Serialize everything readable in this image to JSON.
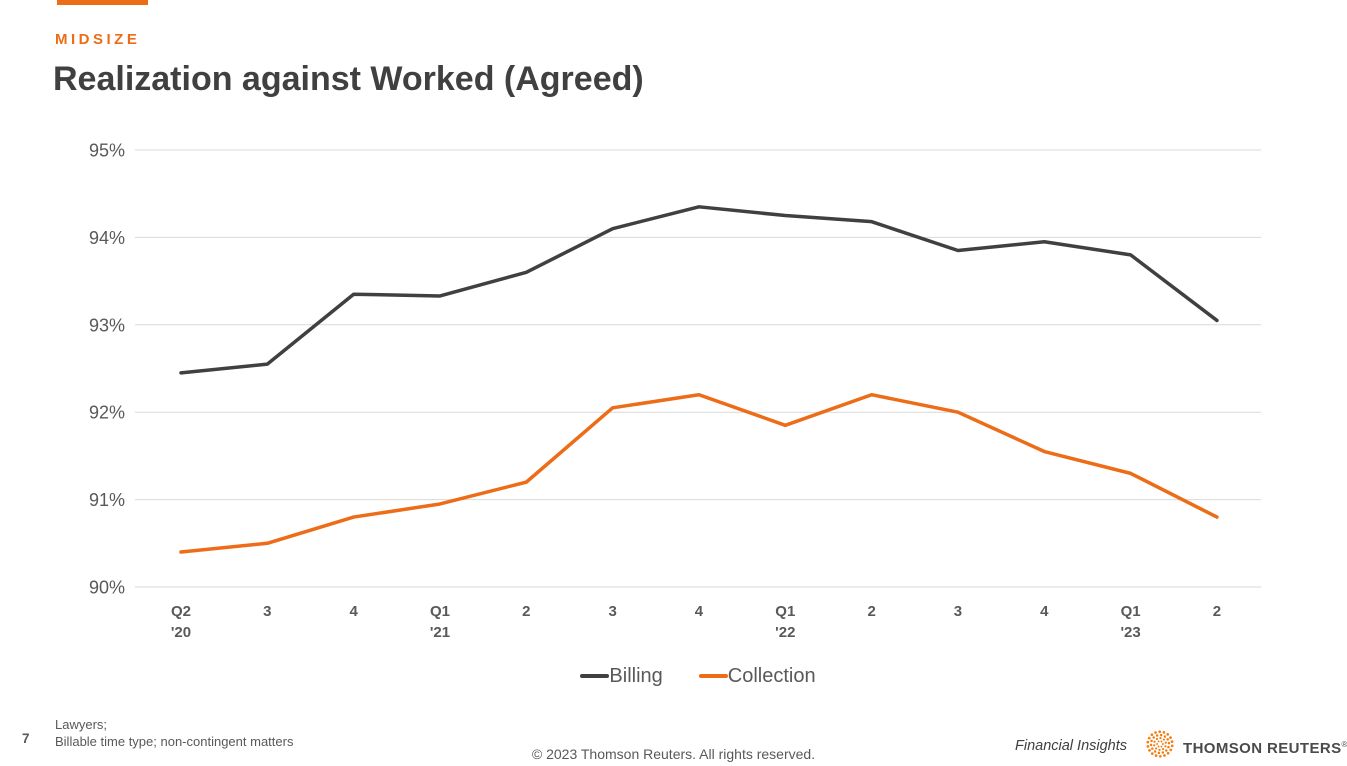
{
  "header": {
    "eyebrow": "MIDSIZE",
    "title": "Realization against Worked (Agreed)"
  },
  "colors": {
    "accent": "#ED6C17",
    "title_text": "#404040",
    "axis_text": "#595959",
    "gridline": "#D9D9D9",
    "legend_text": "#595959",
    "footer_text": "#595959",
    "logo_orange": "#F07E13",
    "wordmark_text": "#4A4A4A"
  },
  "chart_data": {
    "type": "line",
    "title": "Realization against Worked (Agreed)",
    "categories": [
      "Q2 '20",
      "3",
      "4",
      "Q1 '21",
      "2",
      "3",
      "4",
      "Q1 '22",
      "2",
      "3",
      "4",
      "Q1 '23",
      "2"
    ],
    "series": [
      {
        "name": "Billing",
        "color": "#404040",
        "values": [
          92.45,
          92.55,
          93.35,
          93.33,
          93.6,
          94.1,
          94.35,
          94.25,
          94.18,
          93.85,
          93.95,
          93.8,
          93.05
        ]
      },
      {
        "name": "Collection",
        "color": "#ED6C17",
        "values": [
          90.4,
          90.5,
          90.8,
          90.95,
          91.2,
          92.05,
          92.2,
          91.85,
          92.2,
          92.0,
          91.55,
          91.3,
          90.8
        ]
      }
    ],
    "y_ticks": [
      {
        "label": "95%",
        "value": 95
      },
      {
        "label": "94%",
        "value": 94
      },
      {
        "label": "93%",
        "value": 93
      },
      {
        "label": "92%",
        "value": 92
      },
      {
        "label": "91%",
        "value": 91
      },
      {
        "label": "90%",
        "value": 90
      }
    ],
    "ylim": [
      90,
      95
    ],
    "xlabel": "",
    "ylabel": "",
    "grid": "horizontal",
    "legend_position": "bottom",
    "unit": "percent"
  },
  "footer": {
    "page_number": "7",
    "note_line1": "Lawyers;",
    "note_line2": "Billable time type; non-contingent matters",
    "copyright": "© 2023 Thomson Reuters. All rights reserved.",
    "product_name": "Financial Insights",
    "brand_wordmark": "THOMSON REUTERS",
    "brand_reg": "®"
  }
}
